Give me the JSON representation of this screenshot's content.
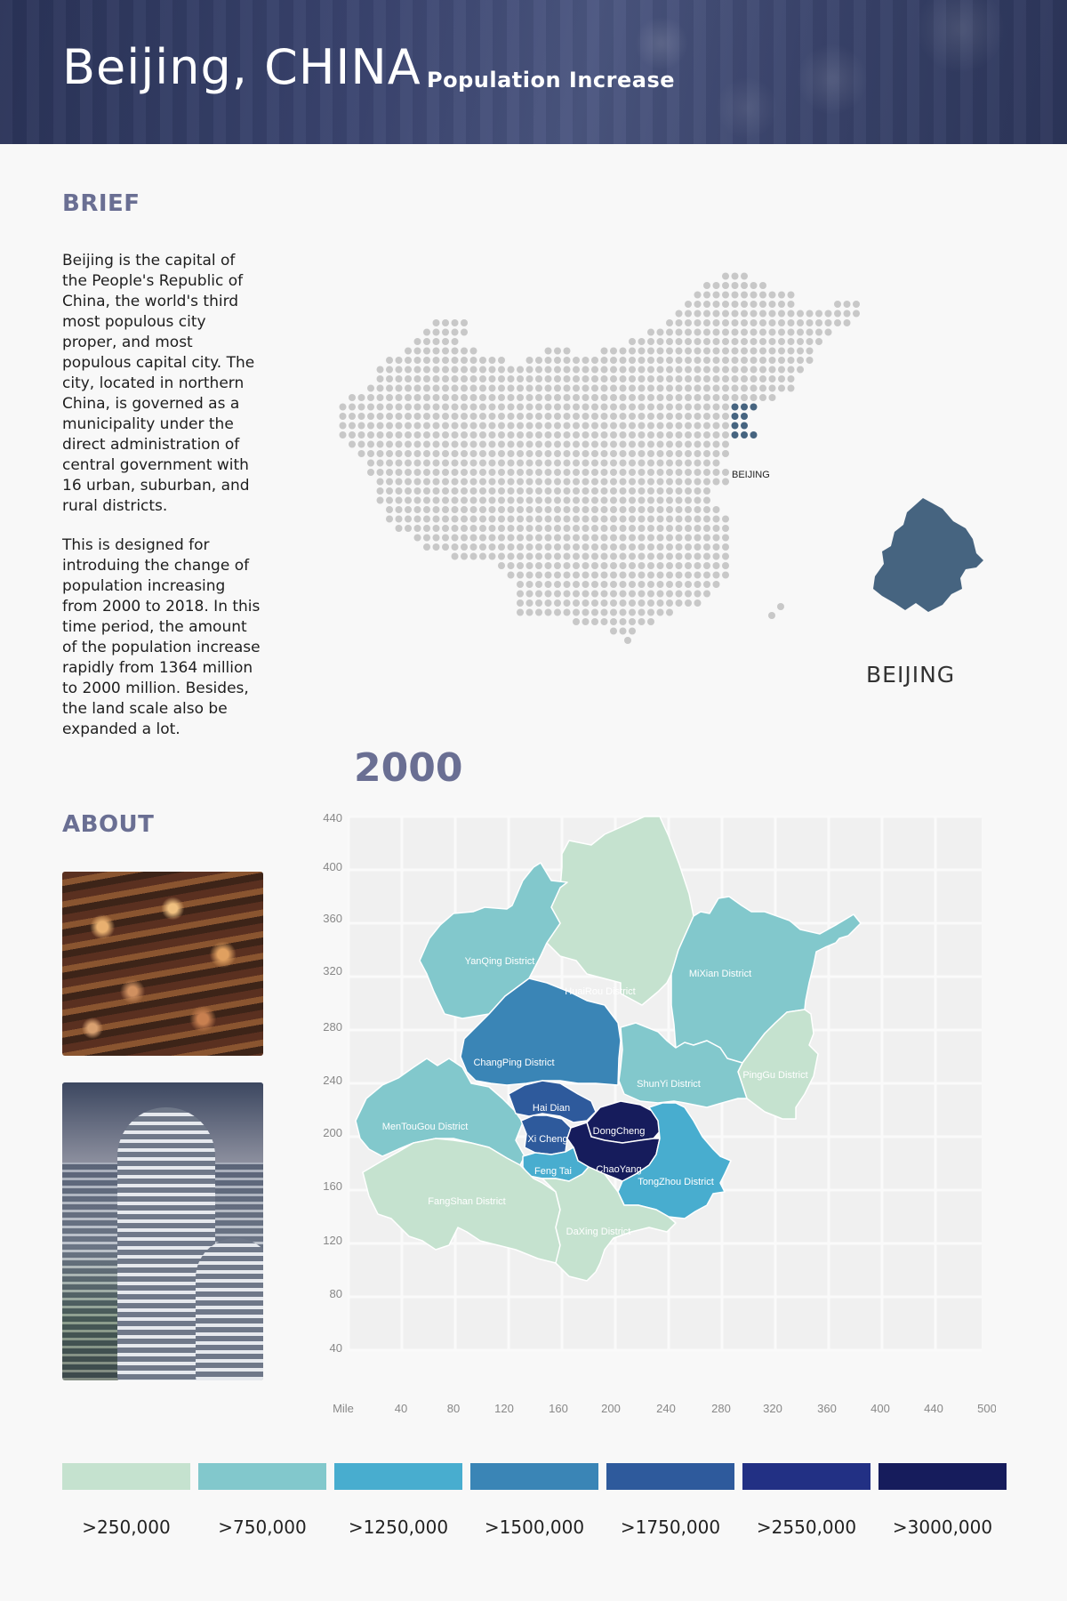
{
  "header": {
    "title": "Beijing, CHINA",
    "subtitle": "Population  Increase"
  },
  "brief": {
    "heading": "BRIEF",
    "paragraph1": "Beijing is the capital of the People's Republic of China, the world's third most populous city proper, and most populous capital city. The city, located in northern China, is governed as a municipality under the direct administration of central government with 16 urban, suburban, and rural districts.",
    "paragraph2": "This is designed for introduing the change of population increasing from 2000 to 2018. In this time period, the amount of the population increase rapidly from 1364 million to 2000 million. Besides, the land scale also be expanded a lot."
  },
  "about": {
    "heading": "ABOUT"
  },
  "china_map": {
    "marker_label": "BEIJING",
    "detail_label": "BEIJING",
    "colors": {
      "dot": "#c8c8c8",
      "highlight": "#466480"
    }
  },
  "district_map": {
    "year": "2000",
    "y_ticks": [
      "440",
      "400",
      "360",
      "320",
      "280",
      "240",
      "200",
      "160",
      "120",
      "80",
      "40"
    ],
    "x_ticks": [
      "Mile",
      "40",
      "80",
      "120",
      "160",
      "200",
      "240",
      "280",
      "320",
      "360",
      "400",
      "440",
      "500"
    ],
    "districts": [
      {
        "name": "YanQing District",
        "class": 1
      },
      {
        "name": "HuaiRou District",
        "class": 0
      },
      {
        "name": "MiXian District",
        "class": 1
      },
      {
        "name": "PingGu District",
        "class": 0
      },
      {
        "name": "ChangPing District",
        "class": 3
      },
      {
        "name": "ShunYi District",
        "class": 1
      },
      {
        "name": "Hai Dian",
        "class": 4
      },
      {
        "name": "MenTouGou District",
        "class": 1
      },
      {
        "name": "DongCheng",
        "class": 6
      },
      {
        "name": "Xi Cheng",
        "class": 4
      },
      {
        "name": "ChaoYang",
        "class": 6
      },
      {
        "name": "Feng Tai",
        "class": 2
      },
      {
        "name": "TongZhou District",
        "class": 2
      },
      {
        "name": "FangShan District",
        "class": 0
      },
      {
        "name": "DaXing District",
        "class": 0
      }
    ]
  },
  "legend": [
    {
      "label": ">250,000",
      "color": "#c5e2cf"
    },
    {
      "label": ">750,000",
      "color": "#82c8cc"
    },
    {
      "label": ">1250,000",
      "color": "#48adcf"
    },
    {
      "label": ">1500,000",
      "color": "#3a85b6"
    },
    {
      "label": ">1750,000",
      "color": "#2e5a9c"
    },
    {
      "label": ">2550,000",
      "color": "#223084"
    },
    {
      "label": ">3000,000",
      "color": "#161c5c"
    }
  ]
}
